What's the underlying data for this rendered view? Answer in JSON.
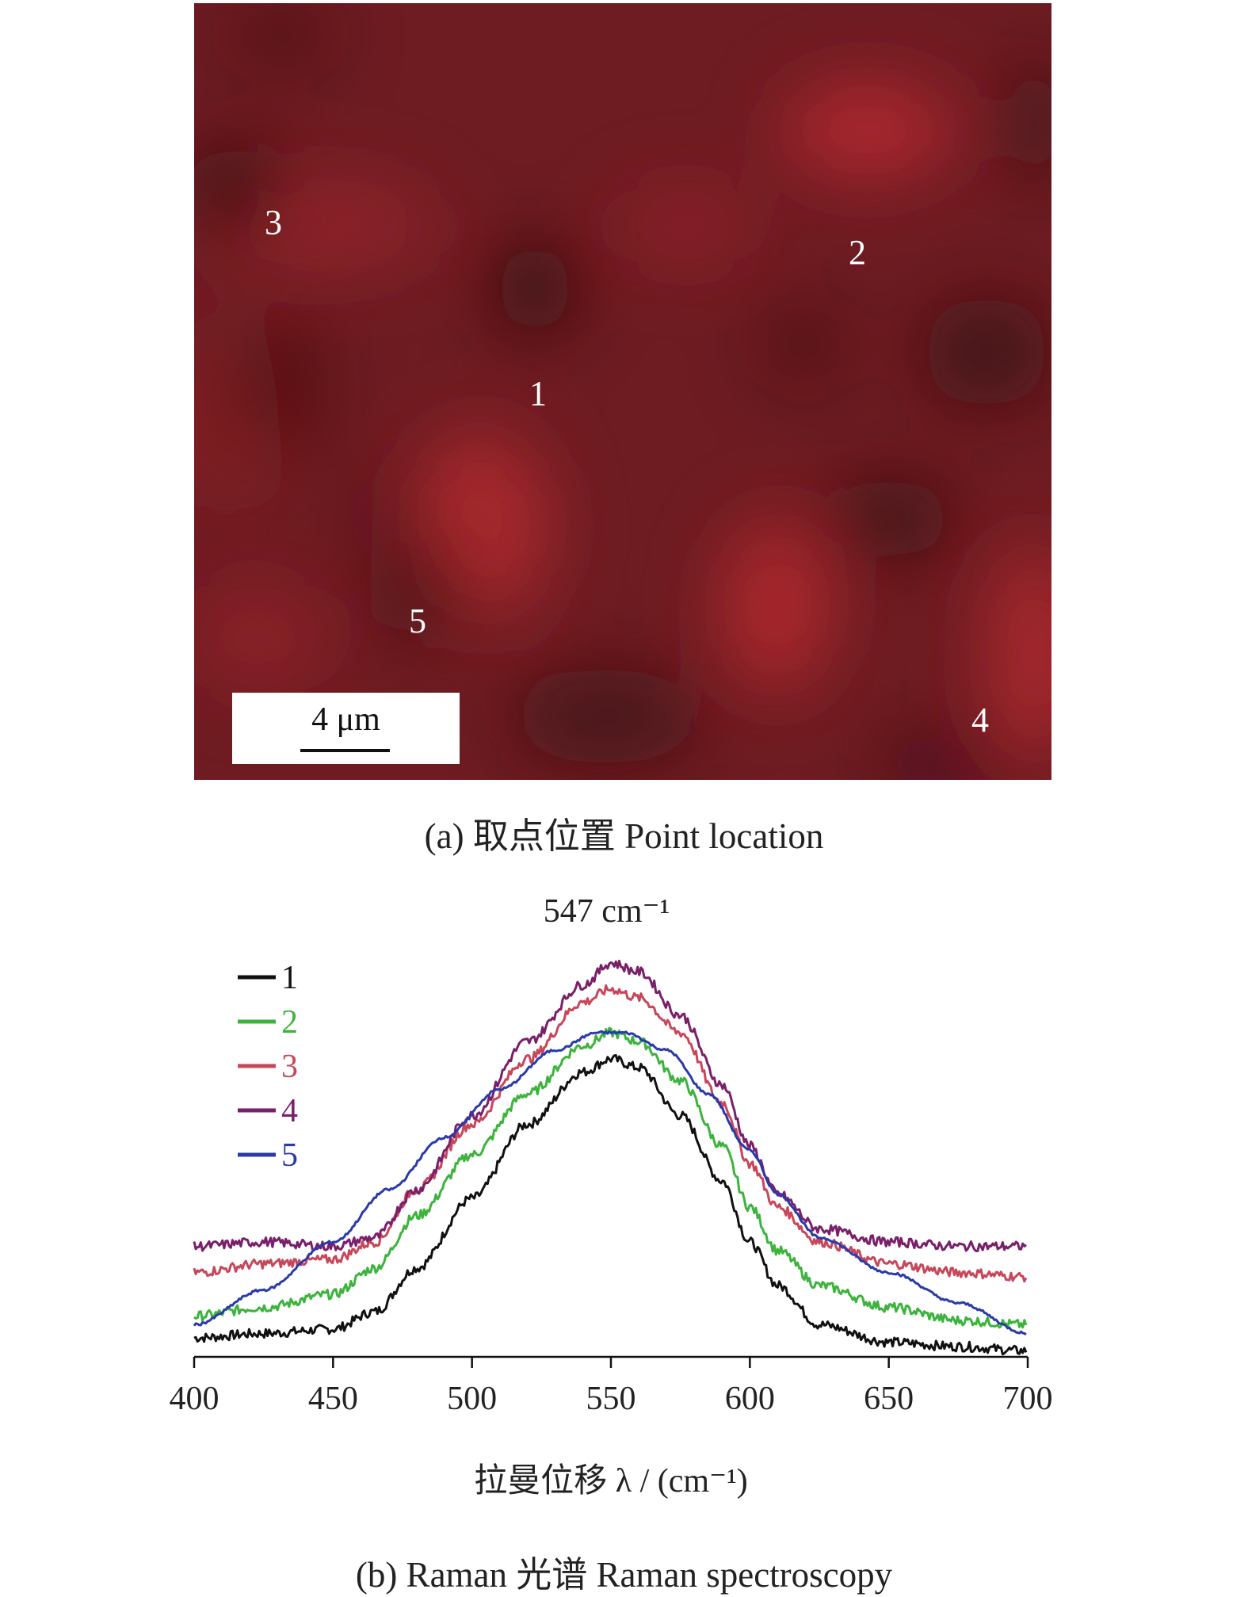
{
  "panel_a": {
    "caption": "(a) 取点位置 Point location",
    "points": [
      {
        "label": "1"
      },
      {
        "label": "2"
      },
      {
        "label": "3"
      },
      {
        "label": "4"
      },
      {
        "label": "5"
      }
    ],
    "scale_bar_label": "4 μm",
    "colors": {
      "base": "#6e1c22",
      "bright": "#b52a30",
      "dark": "#2e0c0e"
    }
  },
  "panel_b": {
    "caption": "(b) Raman 光谱 Raman spectroscopy"
  },
  "chart_data": {
    "type": "line",
    "title": "",
    "annotation": "547 cm⁻¹",
    "xlabel": "拉曼位移 λ / (cm⁻¹)",
    "ylabel": "",
    "xlim": [
      400,
      700
    ],
    "ylim": [
      0,
      1
    ],
    "xticks": [
      "400",
      "450",
      "500",
      "550",
      "600",
      "650",
      "700"
    ],
    "legend_position": "top-left",
    "grid": false,
    "series": [
      {
        "name": "1",
        "color": "#111111",
        "points": [
          [
            400,
            0.04
          ],
          [
            425,
            0.05
          ],
          [
            450,
            0.06
          ],
          [
            465,
            0.1
          ],
          [
            480,
            0.2
          ],
          [
            500,
            0.36
          ],
          [
            520,
            0.53
          ],
          [
            540,
            0.65
          ],
          [
            550,
            0.68
          ],
          [
            560,
            0.66
          ],
          [
            575,
            0.55
          ],
          [
            590,
            0.4
          ],
          [
            600,
            0.26
          ],
          [
            610,
            0.16
          ],
          [
            625,
            0.07
          ],
          [
            650,
            0.03
          ],
          [
            675,
            0.02
          ],
          [
            700,
            0.01
          ]
        ]
      },
      {
        "name": "2",
        "color": "#3cb43c",
        "points": [
          [
            400,
            0.09
          ],
          [
            425,
            0.11
          ],
          [
            450,
            0.14
          ],
          [
            465,
            0.2
          ],
          [
            480,
            0.32
          ],
          [
            500,
            0.46
          ],
          [
            520,
            0.6
          ],
          [
            540,
            0.71
          ],
          [
            550,
            0.74
          ],
          [
            560,
            0.72
          ],
          [
            575,
            0.63
          ],
          [
            590,
            0.48
          ],
          [
            600,
            0.34
          ],
          [
            610,
            0.24
          ],
          [
            625,
            0.16
          ],
          [
            650,
            0.11
          ],
          [
            675,
            0.08
          ],
          [
            700,
            0.07
          ]
        ]
      },
      {
        "name": "3",
        "color": "#c8465a",
        "points": [
          [
            400,
            0.19
          ],
          [
            425,
            0.21
          ],
          [
            450,
            0.22
          ],
          [
            465,
            0.26
          ],
          [
            480,
            0.38
          ],
          [
            500,
            0.53
          ],
          [
            520,
            0.68
          ],
          [
            540,
            0.81
          ],
          [
            550,
            0.84
          ],
          [
            560,
            0.82
          ],
          [
            575,
            0.74
          ],
          [
            590,
            0.58
          ],
          [
            600,
            0.44
          ],
          [
            610,
            0.34
          ],
          [
            625,
            0.26
          ],
          [
            650,
            0.21
          ],
          [
            675,
            0.19
          ],
          [
            700,
            0.18
          ]
        ]
      },
      {
        "name": "4",
        "color": "#7a1f6a",
        "points": [
          [
            400,
            0.25
          ],
          [
            425,
            0.26
          ],
          [
            450,
            0.25
          ],
          [
            465,
            0.27
          ],
          [
            480,
            0.38
          ],
          [
            500,
            0.55
          ],
          [
            520,
            0.72
          ],
          [
            540,
            0.85
          ],
          [
            550,
            0.9
          ],
          [
            560,
            0.88
          ],
          [
            575,
            0.78
          ],
          [
            590,
            0.62
          ],
          [
            600,
            0.48
          ],
          [
            610,
            0.37
          ],
          [
            625,
            0.29
          ],
          [
            650,
            0.26
          ],
          [
            675,
            0.25
          ],
          [
            700,
            0.25
          ]
        ]
      },
      {
        "name": "5",
        "color": "#2a3aa8",
        "points": [
          [
            400,
            0.07
          ],
          [
            425,
            0.15
          ],
          [
            450,
            0.26
          ],
          [
            470,
            0.38
          ],
          [
            490,
            0.5
          ],
          [
            510,
            0.61
          ],
          [
            530,
            0.7
          ],
          [
            545,
            0.74
          ],
          [
            555,
            0.74
          ],
          [
            570,
            0.7
          ],
          [
            585,
            0.6
          ],
          [
            600,
            0.47
          ],
          [
            610,
            0.37
          ],
          [
            625,
            0.27
          ],
          [
            650,
            0.19
          ],
          [
            675,
            0.12
          ],
          [
            700,
            0.05
          ]
        ]
      }
    ]
  }
}
